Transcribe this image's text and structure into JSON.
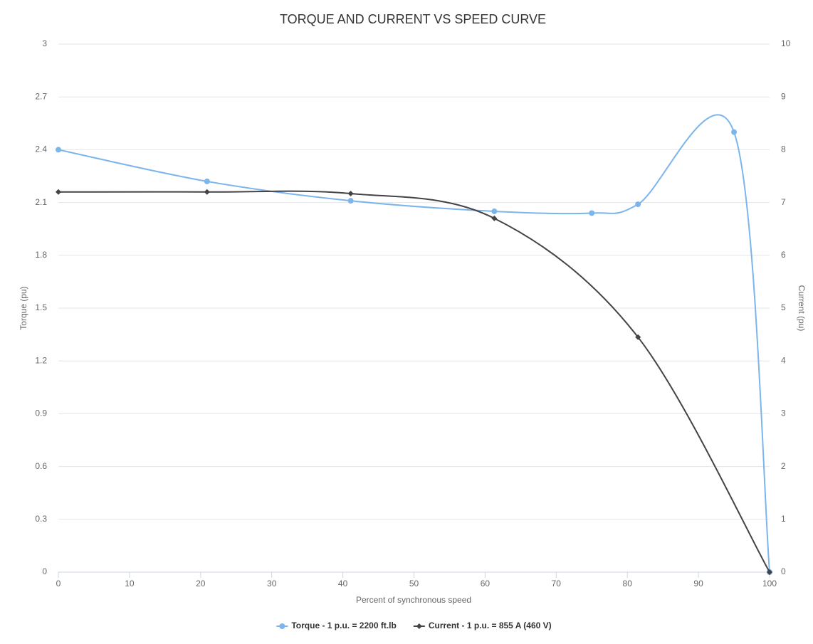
{
  "chart_data": {
    "type": "line",
    "title": "TORQUE AND CURRENT VS SPEED CURVE",
    "x_label": "Percent of synchronous speed",
    "y_label": "Torque (pu)",
    "y2_label": "Current (pu)",
    "xlim": [
      0,
      100
    ],
    "xticks": [
      0,
      10,
      20,
      30,
      40,
      50,
      60,
      70,
      80,
      90,
      100
    ],
    "ylim": [
      0,
      3
    ],
    "yticks": [
      0,
      0.3,
      0.6,
      0.9,
      1.2,
      1.5,
      1.8,
      2.1,
      2.4,
      2.7,
      3
    ],
    "y2lim": [
      0,
      10
    ],
    "y2ticks": [
      0,
      1,
      2,
      3,
      4,
      5,
      6,
      7,
      8,
      9,
      10
    ],
    "grid": true,
    "legend": "bottom",
    "series": [
      {
        "name": "Torque - 1 p.u. = 2200 ft.lb",
        "color": "#7cb5ec",
        "marker": "circle",
        "x": [
          0,
          20.9,
          41.1,
          61.3,
          75,
          81.5,
          95,
          100
        ],
        "values": [
          2.4,
          2.22,
          2.11,
          2.05,
          2.04,
          2.09,
          2.5,
          0
        ]
      },
      {
        "name": "Current - 1 p.u. = 855 A (460 V)",
        "color": "#434348",
        "marker": "diamond",
        "axis": "y2",
        "x": [
          0,
          20.9,
          41.1,
          61.3,
          81.5,
          100
        ],
        "values": [
          7.2,
          7.2,
          7.17,
          6.7,
          4.45,
          0
        ]
      }
    ]
  }
}
